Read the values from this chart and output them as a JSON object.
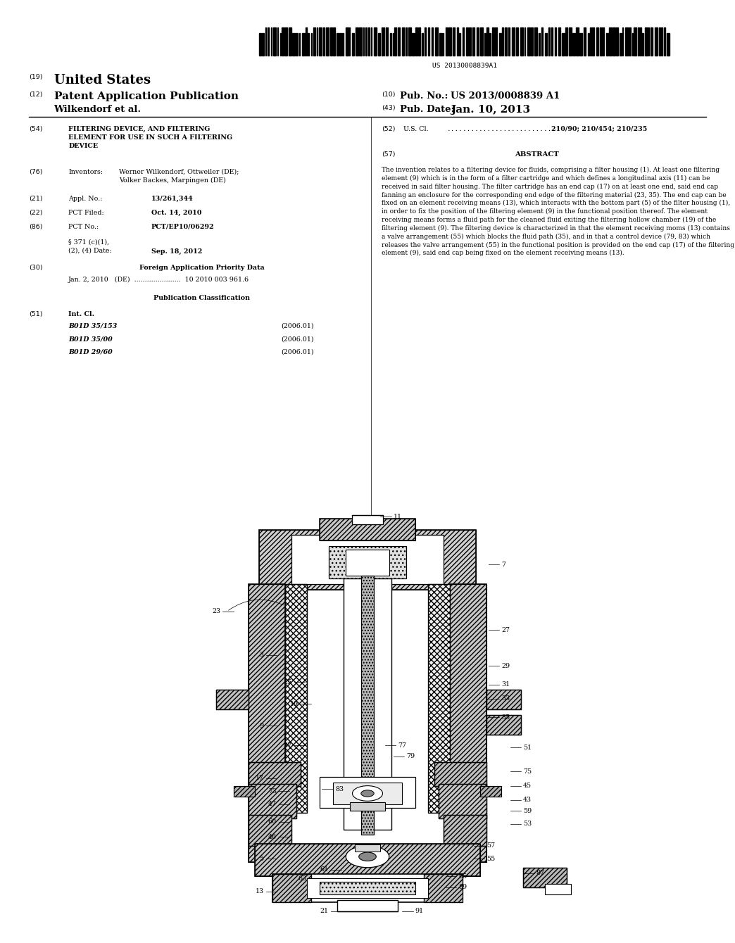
{
  "background_color": "#ffffff",
  "barcode_text": "US 20130008839A1",
  "header_19": "(19)",
  "header_19_text": "United States",
  "header_12": "(12)",
  "header_12_text": "Patent Application Publication",
  "header_10_label": "(10)",
  "header_10_text": "Pub. No.:",
  "header_10_value": "US 2013/0008839 A1",
  "inventor_line": "Wilkendorf et al.",
  "header_43_label": "(43)",
  "header_43_text": "Pub. Date:",
  "header_43_value": "Jan. 10, 2013",
  "section_54_num": "(54)",
  "section_54_title": "FILTERING DEVICE, AND FILTERING\nELEMENT FOR USE IN SUCH A FILTERING\nDEVICE",
  "section_52_num": "(52)",
  "section_52_label": "U.S. Cl.",
  "section_52_dots": "...........................",
  "section_52_value": "210/90; 210/454; 210/235",
  "section_76_num": "(76)",
  "section_76_label": "Inventors:",
  "section_76_value": "Werner Wilkendorf, Ottweiler (DE);\nVolker Backes, Marpingen (DE)",
  "section_21_num": "(21)",
  "section_21_label": "Appl. No.:",
  "section_21_value": "13/261,344",
  "section_22_num": "(22)",
  "section_22_label": "PCT Filed:",
  "section_22_value": "Oct. 14, 2010",
  "section_86_num": "(86)",
  "section_86_label": "PCT No.:",
  "section_86_value": "PCT/EP10/06292",
  "section_86b_label": "§ 371 (c)(1),\n(2), (4) Date:",
  "section_86b_value": "Sep. 18, 2012",
  "section_30_num": "(30)",
  "section_30_title": "Foreign Application Priority Data",
  "section_30_data": "Jan. 2, 2010   (DE)  ......................  10 2010 003 961.6",
  "pub_class_title": "Publication Classification",
  "section_51_num": "(51)",
  "section_51_label": "Int. Cl.",
  "section_51_data": [
    [
      "B01D 35/153",
      "(2006.01)"
    ],
    [
      "B01D 35/00",
      "(2006.01)"
    ],
    [
      "B01D 29/60",
      "(2006.01)"
    ]
  ],
  "section_57_num": "(57)",
  "section_57_title": "ABSTRACT",
  "abstract_text": "The invention relates to a filtering device for fluids, comprising a filter housing (1). At least one filtering element (9) which is in the form of a filter cartridge and which defines a longitudinal axis (11) can be received in said filter housing. The filter cartridge has an end cap (17) on at least one end, said end cap fanning an enclosure for the corresponding end edge of the filtering material (23, 35). The end cap can be fixed on an element receiving means (13), which interacts with the bottom part (5) of the filter housing (1), in order to fix the position of the filtering element (9) in the functional position thereof. The element receiving means forms a fluid path for the cleaned fluid exiting the filtering hollow chamber (19) of the filtering element (9). The filtering device is characterized in that the element receiving moms (13) contains a valve arrangement (55) which blocks the fluid path (35), and in that a control device (79, 83) which releases the valve arrangement (55) in the functional position is provided on the end cap (17) of the filtering element (9), said end cap being fixed on the element receiving means (13).",
  "fig_width": 1024,
  "fig_height": 1320
}
